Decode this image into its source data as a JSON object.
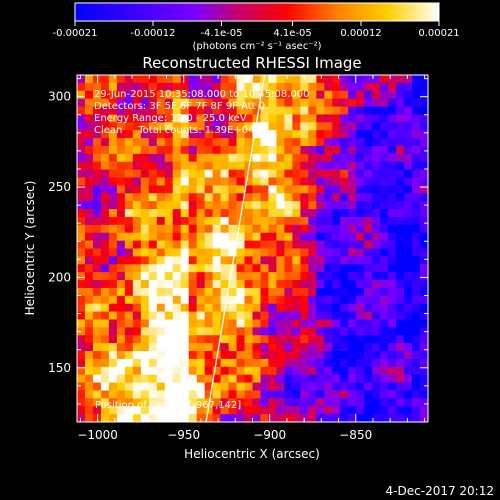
{
  "chart_data": {
    "type": "heatmap",
    "title": "Reconstructed RHESSI Image",
    "xlabel": "Heliocentric X (arcsec)",
    "ylabel": "Heliocentric Y (arcsec)",
    "xlim": [
      -1012,
      -808
    ],
    "ylim": [
      120,
      312
    ],
    "x_ticks": [
      -1000,
      -950,
      -900,
      -850
    ],
    "x_tick_labels": [
      "−1000",
      "−950",
      "−900",
      "−850"
    ],
    "y_ticks": [
      150,
      200,
      250,
      300
    ],
    "y_tick_labels": [
      "150",
      "200",
      "250",
      "300"
    ],
    "colorbar": {
      "range": [
        -0.00021,
        0.00021
      ],
      "tick_values": [
        -0.00021,
        -0.00012,
        -4.1e-05,
        4.1e-05,
        0.00012,
        0.00021
      ],
      "tick_labels": [
        "-0.00021",
        "-0.00012",
        "-4.1e-05",
        "4.1e-05",
        "0.00012",
        "0.00021"
      ],
      "unit_label": "(photons cm⁻² s⁻¹ asec⁻²)",
      "colors": [
        "#0000ff",
        "#7a00ff",
        "#c8006a",
        "#ff0000",
        "#ff8000",
        "#ffd000",
        "#ffffff"
      ]
    },
    "annotations": [
      "29-Jun-2015 10:35:08.000 to 10:45:08.000",
      "Detectors: 3F 5F 6F 7F 8F 9F Att 0",
      "Energy Range: 12.0 - 25.0 keV",
      "Clean     Total counts: 1.39E+04"
    ],
    "position_label": "Position of Peak = [-967,142]",
    "limb_line": [
      [
        -937,
        120
      ],
      [
        -903,
        312
      ]
    ],
    "grid": false,
    "legend": "none"
  },
  "footer": {
    "date": "4-Dec-2017 20:12"
  }
}
